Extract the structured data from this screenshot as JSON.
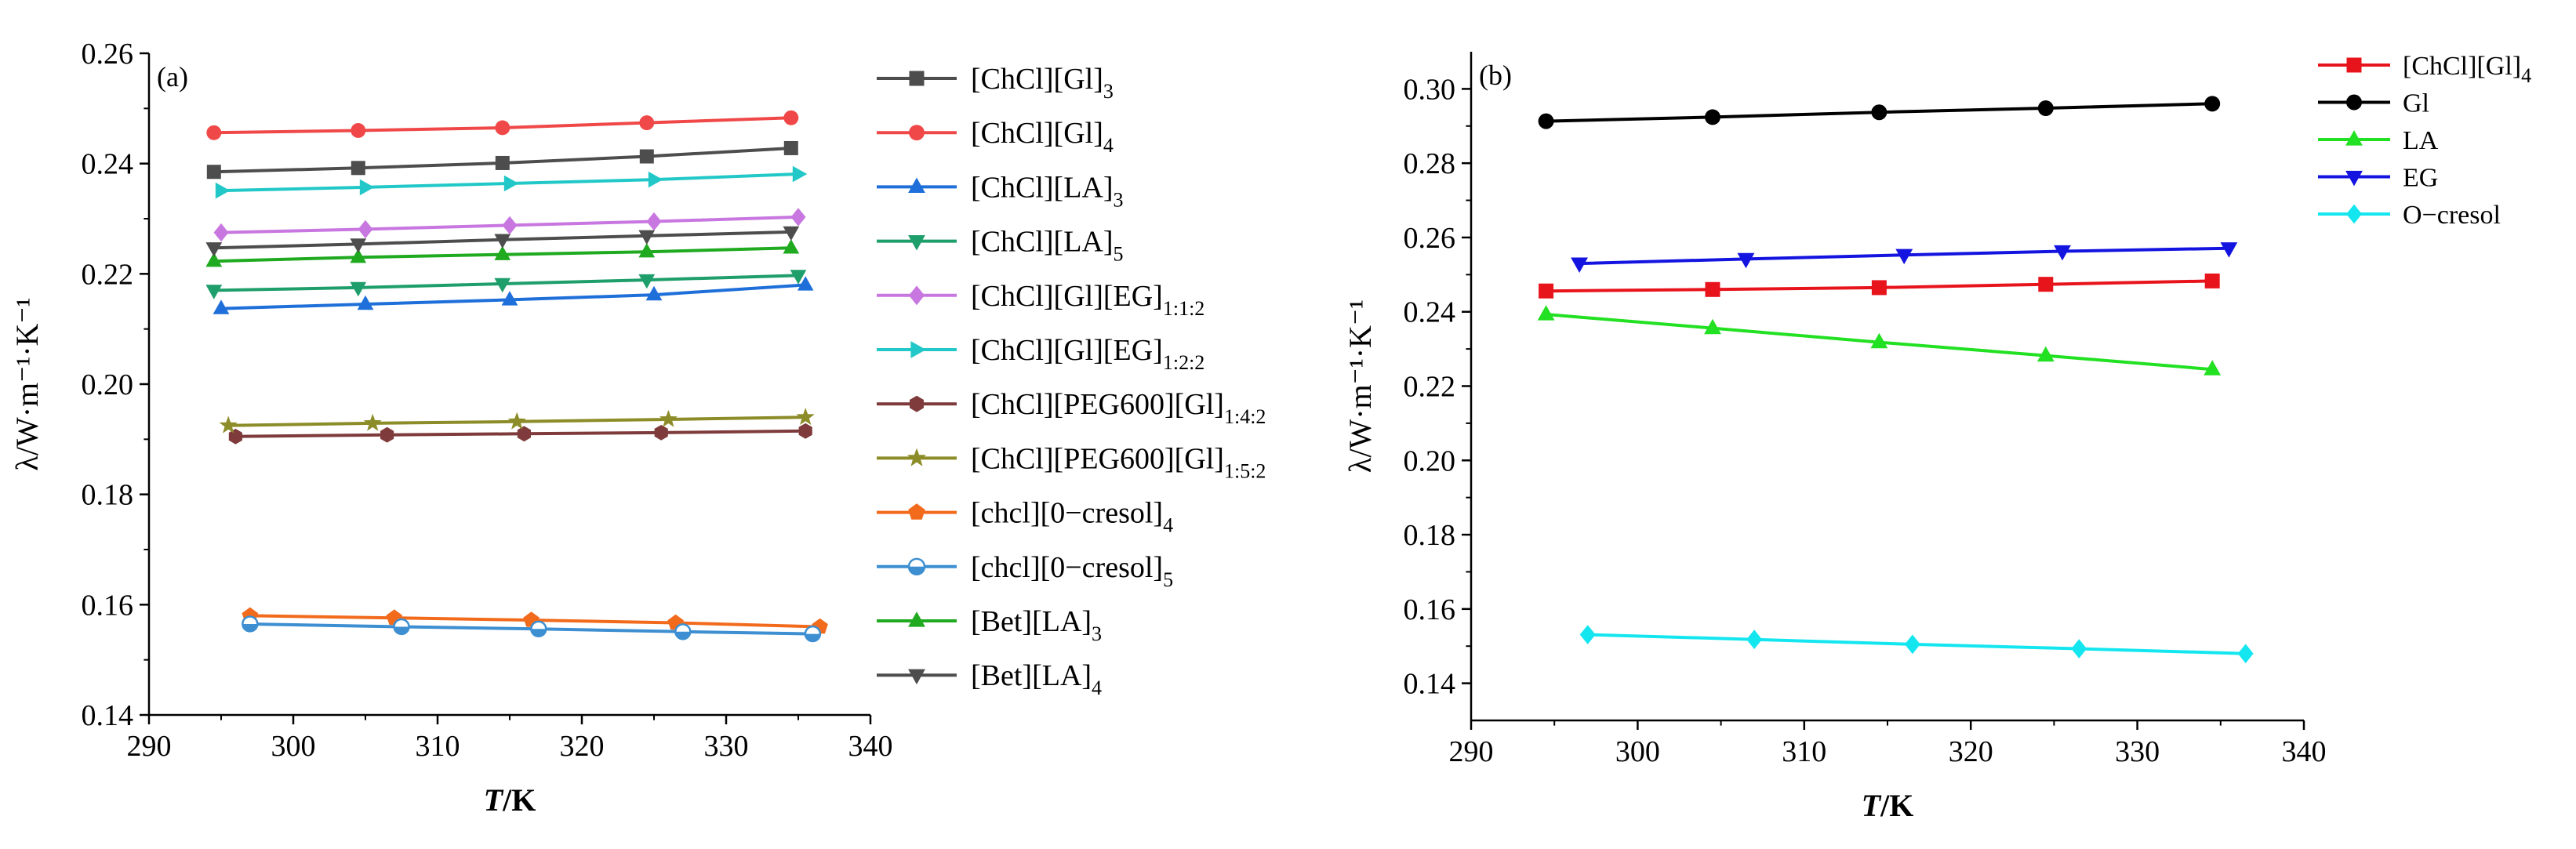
{
  "chart_data": [
    {
      "panel": "a",
      "type": "line",
      "panel_label": "(a)",
      "xlabel_parts": [
        "T",
        "/K"
      ],
      "ylabel": "λ/W·m⁻¹·K⁻¹",
      "xlim": [
        290,
        340
      ],
      "ylim": [
        0.14,
        0.26
      ],
      "xticks": [
        290,
        300,
        310,
        320,
        330,
        340
      ],
      "yticks": [
        0.14,
        0.16,
        0.18,
        0.2,
        0.22,
        0.24,
        0.26
      ],
      "ytick_labels": [
        "0.14",
        "0.16",
        "0.18",
        "0.20",
        "0.22",
        "0.24",
        "0.26"
      ],
      "legend_position": "right-outside",
      "series": [
        {
          "name": "[ChCl][Gl]",
          "sub": "3",
          "color": "#4d4d4d",
          "marker": "square",
          "x": [
            294.5,
            304.5,
            314.5,
            324.5,
            334.5
          ],
          "y": [
            0.2385,
            0.2392,
            0.2401,
            0.2413,
            0.2428
          ]
        },
        {
          "name": "[ChCl][Gl]",
          "sub": "4",
          "color": "#f04848",
          "marker": "circle",
          "x": [
            294.5,
            304.5,
            314.5,
            324.5,
            334.5
          ],
          "y": [
            0.2456,
            0.246,
            0.2465,
            0.2474,
            0.2483
          ]
        },
        {
          "name": "[ChCl][LA]",
          "sub": "3",
          "color": "#1e6fd9",
          "marker": "triangle-up",
          "x": [
            295.0,
            305.0,
            315.0,
            325.0,
            335.5
          ],
          "y": [
            0.2137,
            0.2145,
            0.2153,
            0.2162,
            0.218
          ]
        },
        {
          "name": "[ChCl][LA]",
          "sub": "5",
          "color": "#1e9e6a",
          "marker": "triangle-down",
          "x": [
            294.5,
            304.5,
            314.5,
            324.5,
            335.0
          ],
          "y": [
            0.217,
            0.2175,
            0.2182,
            0.2189,
            0.2197
          ]
        },
        {
          "name": "[ChCl][Gl][EG]",
          "sub": "1:1:2",
          "color": "#c877e0",
          "marker": "diamond",
          "x": [
            295.0,
            305.0,
            315.0,
            325.0,
            335.0
          ],
          "y": [
            0.2275,
            0.2281,
            0.2288,
            0.2295,
            0.2303
          ]
        },
        {
          "name": "[ChCl][Gl][EG]",
          "sub": "1:2:2",
          "color": "#22c8c8",
          "marker": "triangle-right",
          "x": [
            295.0,
            305.0,
            315.0,
            325.0,
            335.0
          ],
          "y": [
            0.2351,
            0.2357,
            0.2364,
            0.2371,
            0.2381
          ]
        },
        {
          "name": "[ChCl][PEG600][Gl]",
          "sub": "1:4:2",
          "color": "#7f3b3b",
          "marker": "hexagon",
          "x": [
            296.0,
            306.5,
            316.0,
            325.5,
            335.5
          ],
          "y": [
            0.1905,
            0.1908,
            0.191,
            0.1912,
            0.1915
          ]
        },
        {
          "name": "[ChCl][PEG600][Gl]",
          "sub": "1:5:2",
          "color": "#8c8c28",
          "marker": "star",
          "x": [
            295.5,
            305.5,
            315.5,
            326.0,
            335.5
          ],
          "y": [
            0.1925,
            0.1929,
            0.1932,
            0.1936,
            0.194
          ]
        },
        {
          "name": "[chcl][0−cresol]",
          "sub": "4",
          "color": "#f26b1d",
          "marker": "pentagon",
          "x": [
            297.0,
            307.0,
            316.5,
            326.5,
            336.5
          ],
          "y": [
            0.158,
            0.1576,
            0.1572,
            0.1567,
            0.156
          ]
        },
        {
          "name": "[chcl][0−cresol]",
          "sub": "5",
          "color": "#3d8fd1",
          "marker": "half-circle",
          "x": [
            297.0,
            307.5,
            317.0,
            327.0,
            336.0
          ],
          "y": [
            0.1565,
            0.156,
            0.1556,
            0.1551,
            0.1547
          ]
        },
        {
          "name": "[Bet][LA]",
          "sub": "3",
          "color": "#1faa1f",
          "marker": "triangle-up",
          "x": [
            294.5,
            304.5,
            314.5,
            324.5,
            334.5
          ],
          "y": [
            0.2223,
            0.223,
            0.2235,
            0.224,
            0.2247
          ]
        },
        {
          "name": "[Bet][LA]",
          "sub": "4",
          "color": "#4d4d4d",
          "marker": "triangle-down",
          "x": [
            294.5,
            304.5,
            314.5,
            324.5,
            334.5
          ],
          "y": [
            0.2247,
            0.2254,
            0.2262,
            0.2269,
            0.2276
          ]
        }
      ]
    },
    {
      "panel": "b",
      "type": "line",
      "panel_label": "(b)",
      "xlabel_parts": [
        "T",
        "/K"
      ],
      "ylabel": "λ/W·m⁻¹·K⁻¹",
      "xlim": [
        290,
        340
      ],
      "ylim": [
        0.13,
        0.31
      ],
      "xticks": [
        290,
        300,
        310,
        320,
        330,
        340
      ],
      "yticks": [
        0.14,
        0.16,
        0.18,
        0.2,
        0.22,
        0.24,
        0.26,
        0.28,
        0.3
      ],
      "ytick_labels": [
        "0.14",
        "0.16",
        "0.18",
        "0.20",
        "0.22",
        "0.24",
        "0.26",
        "0.28",
        "0.30"
      ],
      "legend_position": "right-outside",
      "series": [
        {
          "name": "[ChCl][Gl]",
          "sub": "4",
          "color": "#e8141c",
          "marker": "square",
          "x": [
            294.5,
            304.5,
            314.5,
            324.5,
            334.5
          ],
          "y": [
            0.2456,
            0.246,
            0.2465,
            0.2474,
            0.2483
          ]
        },
        {
          "name": "Gl",
          "sub": "",
          "color": "#000000",
          "marker": "circle",
          "x": [
            294.5,
            304.5,
            314.5,
            324.5,
            334.5
          ],
          "y": [
            0.2913,
            0.2924,
            0.2937,
            0.2948,
            0.296
          ]
        },
        {
          "name": "LA",
          "sub": "",
          "color": "#22e022",
          "marker": "triangle-up",
          "x": [
            294.5,
            304.5,
            314.5,
            324.5,
            334.5
          ],
          "y": [
            0.2393,
            0.2356,
            0.2318,
            0.2282,
            0.2245
          ]
        },
        {
          "name": "EG",
          "sub": "",
          "color": "#1414e0",
          "marker": "triangle-down",
          "x": [
            296.5,
            306.5,
            316.0,
            325.5,
            335.5
          ],
          "y": [
            0.253,
            0.2542,
            0.2553,
            0.2563,
            0.2571
          ]
        },
        {
          "name": "O−cresol",
          "sub": "",
          "color": "#14e6f0",
          "marker": "diamond",
          "x": [
            297.0,
            307.0,
            316.5,
            326.5,
            336.5
          ],
          "y": [
            0.1531,
            0.1518,
            0.1505,
            0.1493,
            0.148
          ]
        }
      ]
    }
  ]
}
